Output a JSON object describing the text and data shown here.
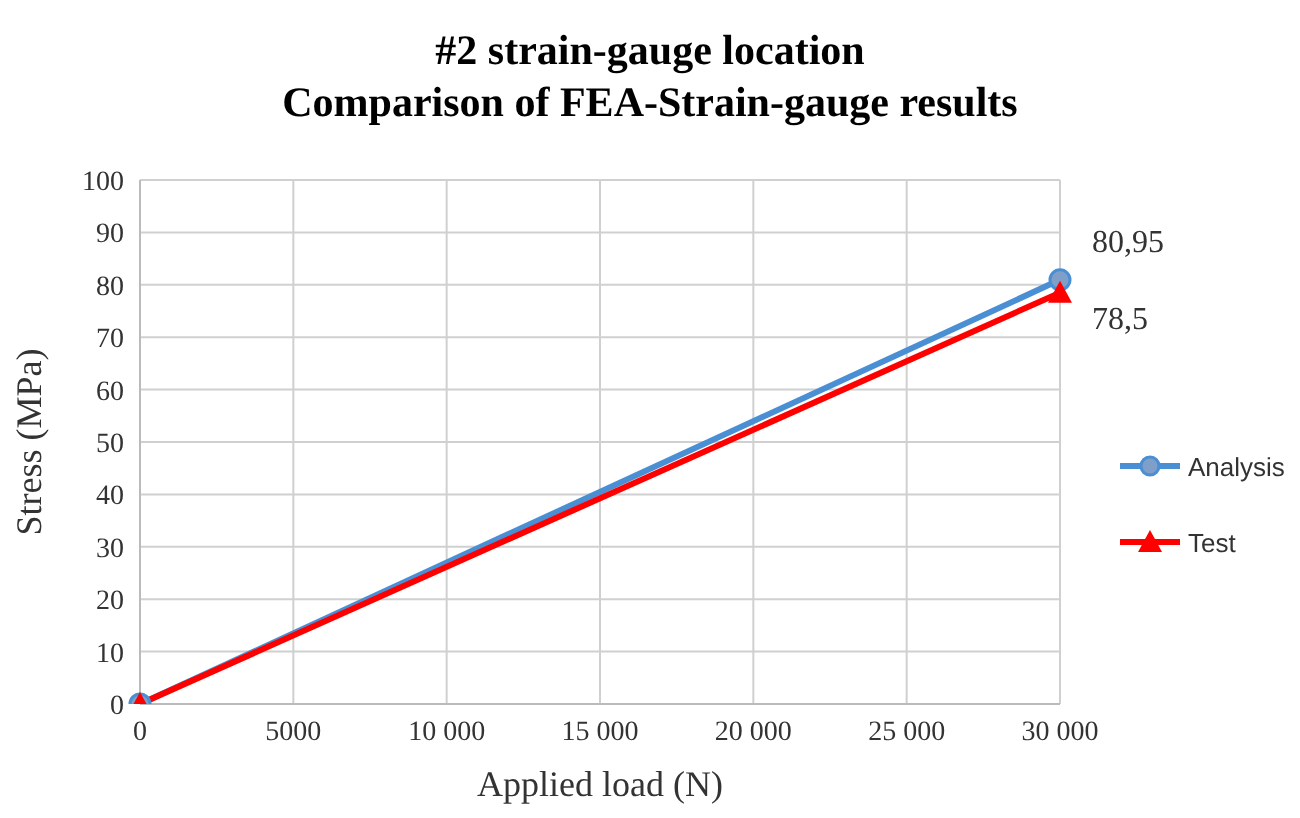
{
  "chart_data": {
    "type": "line",
    "title": "#2 strain-gauge location\nComparison of FEA-Strain-gauge results",
    "xlabel": "Applied load  (N)",
    "ylabel": "Stress  (MPa)",
    "x": [
      0,
      30000
    ],
    "xlim": [
      0,
      30000
    ],
    "xticks": [
      0,
      5000,
      {
        "value": 10000,
        "label": "10 000"
      },
      {
        "value": 15000,
        "label": "15 000"
      },
      {
        "value": 20000,
        "label": "20 000"
      },
      {
        "value": 25000,
        "label": "25 000"
      },
      {
        "value": 30000,
        "label": "30 000"
      }
    ],
    "ylim": [
      0,
      100
    ],
    "yticks": [
      0,
      10,
      20,
      30,
      40,
      50,
      60,
      70,
      80,
      90,
      100
    ],
    "grid": true,
    "legend": "right",
    "series": [
      {
        "name": "Analysis",
        "color": "#4a8fd4",
        "marker": "circle",
        "values": [
          0,
          80.95
        ],
        "value_labels": [
          null,
          "80,95"
        ]
      },
      {
        "name": "Test",
        "color": "#ff0000",
        "marker": "triangle",
        "values": [
          0,
          78.5
        ],
        "value_labels": [
          null,
          "78,5"
        ]
      }
    ]
  }
}
